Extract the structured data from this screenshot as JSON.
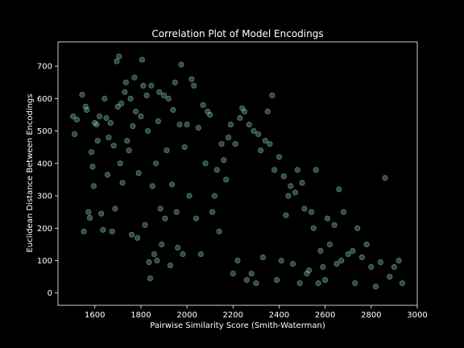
{
  "chart_data": {
    "type": "scatter",
    "title": "Correlation Plot of Model Encodings",
    "xlabel": "Pairwise Similarity Score (Smith-Waterman)",
    "ylabel": "Euclidean Distance Between Encodings",
    "xlim": [
      1440,
      3000
    ],
    "ylim": [
      -38,
      775
    ],
    "xticks": [
      1600,
      1800,
      2000,
      2200,
      2400,
      2600,
      2800,
      3000
    ],
    "yticks": [
      0,
      100,
      200,
      300,
      400,
      500,
      600,
      700
    ],
    "grid": false,
    "legend": "none",
    "marker_color": "#8dd3c7",
    "marker_alpha": 0.35,
    "background": "#000000",
    "series": [
      {
        "values": [
          [
            1505,
            545
          ],
          [
            1512,
            490
          ],
          [
            1522,
            535
          ],
          [
            1545,
            612
          ],
          [
            1552,
            190
          ],
          [
            1560,
            575
          ],
          [
            1565,
            565
          ],
          [
            1572,
            250
          ],
          [
            1578,
            232
          ],
          [
            1585,
            435
          ],
          [
            1590,
            390
          ],
          [
            1595,
            330
          ],
          [
            1600,
            525
          ],
          [
            1608,
            520
          ],
          [
            1612,
            470
          ],
          [
            1620,
            545
          ],
          [
            1628,
            245
          ],
          [
            1635,
            195
          ],
          [
            1642,
            600
          ],
          [
            1650,
            540
          ],
          [
            1655,
            365
          ],
          [
            1660,
            480
          ],
          [
            1668,
            525
          ],
          [
            1675,
            190
          ],
          [
            1682,
            455
          ],
          [
            1688,
            260
          ],
          [
            1695,
            715
          ],
          [
            1700,
            575
          ],
          [
            1705,
            730
          ],
          [
            1710,
            400
          ],
          [
            1715,
            585
          ],
          [
            1720,
            340
          ],
          [
            1730,
            620
          ],
          [
            1735,
            650
          ],
          [
            1740,
            470
          ],
          [
            1748,
            440
          ],
          [
            1755,
            600
          ],
          [
            1760,
            180
          ],
          [
            1765,
            515
          ],
          [
            1772,
            665
          ],
          [
            1778,
            560
          ],
          [
            1785,
            170
          ],
          [
            1790,
            370
          ],
          [
            1800,
            545
          ],
          [
            1805,
            720
          ],
          [
            1810,
            640
          ],
          [
            1818,
            210
          ],
          [
            1825,
            610
          ],
          [
            1830,
            500
          ],
          [
            1835,
            95
          ],
          [
            1840,
            45
          ],
          [
            1845,
            640
          ],
          [
            1850,
            330
          ],
          [
            1858,
            120
          ],
          [
            1865,
            400
          ],
          [
            1870,
            100
          ],
          [
            1875,
            530
          ],
          [
            1880,
            620
          ],
          [
            1885,
            260
          ],
          [
            1890,
            150
          ],
          [
            1900,
            610
          ],
          [
            1905,
            230
          ],
          [
            1912,
            440
          ],
          [
            1920,
            600
          ],
          [
            1928,
            85
          ],
          [
            1935,
            335
          ],
          [
            1940,
            565
          ],
          [
            1948,
            650
          ],
          [
            1955,
            250
          ],
          [
            1960,
            140
          ],
          [
            1968,
            520
          ],
          [
            1975,
            705
          ],
          [
            1982,
            120
          ],
          [
            1990,
            450
          ],
          [
            2000,
            520
          ],
          [
            2010,
            300
          ],
          [
            2020,
            660
          ],
          [
            2030,
            640
          ],
          [
            2040,
            230
          ],
          [
            2050,
            510
          ],
          [
            2060,
            120
          ],
          [
            2070,
            580
          ],
          [
            2080,
            400
          ],
          [
            2090,
            560
          ],
          [
            2100,
            550
          ],
          [
            2110,
            250
          ],
          [
            2120,
            300
          ],
          [
            2130,
            380
          ],
          [
            2140,
            190
          ],
          [
            2150,
            460
          ],
          [
            2160,
            410
          ],
          [
            2170,
            350
          ],
          [
            2180,
            480
          ],
          [
            2190,
            520
          ],
          [
            2200,
            60
          ],
          [
            2210,
            460
          ],
          [
            2220,
            100
          ],
          [
            2230,
            540
          ],
          [
            2240,
            570
          ],
          [
            2250,
            560
          ],
          [
            2260,
            40
          ],
          [
            2270,
            520
          ],
          [
            2280,
            60
          ],
          [
            2290,
            500
          ],
          [
            2300,
            30
          ],
          [
            2310,
            490
          ],
          [
            2320,
            440
          ],
          [
            2330,
            110
          ],
          [
            2340,
            470
          ],
          [
            2350,
            560
          ],
          [
            2360,
            460
          ],
          [
            2370,
            610
          ],
          [
            2380,
            380
          ],
          [
            2390,
            40
          ],
          [
            2400,
            420
          ],
          [
            2410,
            100
          ],
          [
            2420,
            360
          ],
          [
            2430,
            240
          ],
          [
            2440,
            300
          ],
          [
            2450,
            330
          ],
          [
            2460,
            90
          ],
          [
            2470,
            310
          ],
          [
            2480,
            380
          ],
          [
            2490,
            30
          ],
          [
            2500,
            340
          ],
          [
            2510,
            260
          ],
          [
            2520,
            60
          ],
          [
            2530,
            70
          ],
          [
            2540,
            250
          ],
          [
            2550,
            200
          ],
          [
            2560,
            380
          ],
          [
            2570,
            30
          ],
          [
            2580,
            130
          ],
          [
            2590,
            80
          ],
          [
            2600,
            40
          ],
          [
            2610,
            230
          ],
          [
            2620,
            150
          ],
          [
            2640,
            210
          ],
          [
            2650,
            90
          ],
          [
            2660,
            320
          ],
          [
            2670,
            100
          ],
          [
            2680,
            250
          ],
          [
            2700,
            120
          ],
          [
            2720,
            130
          ],
          [
            2730,
            30
          ],
          [
            2740,
            200
          ],
          [
            2760,
            110
          ],
          [
            2780,
            150
          ],
          [
            2800,
            80
          ],
          [
            2820,
            20
          ],
          [
            2840,
            95
          ],
          [
            2860,
            355
          ],
          [
            2880,
            50
          ],
          [
            2900,
            80
          ],
          [
            2920,
            100
          ],
          [
            2935,
            30
          ]
        ]
      }
    ]
  }
}
